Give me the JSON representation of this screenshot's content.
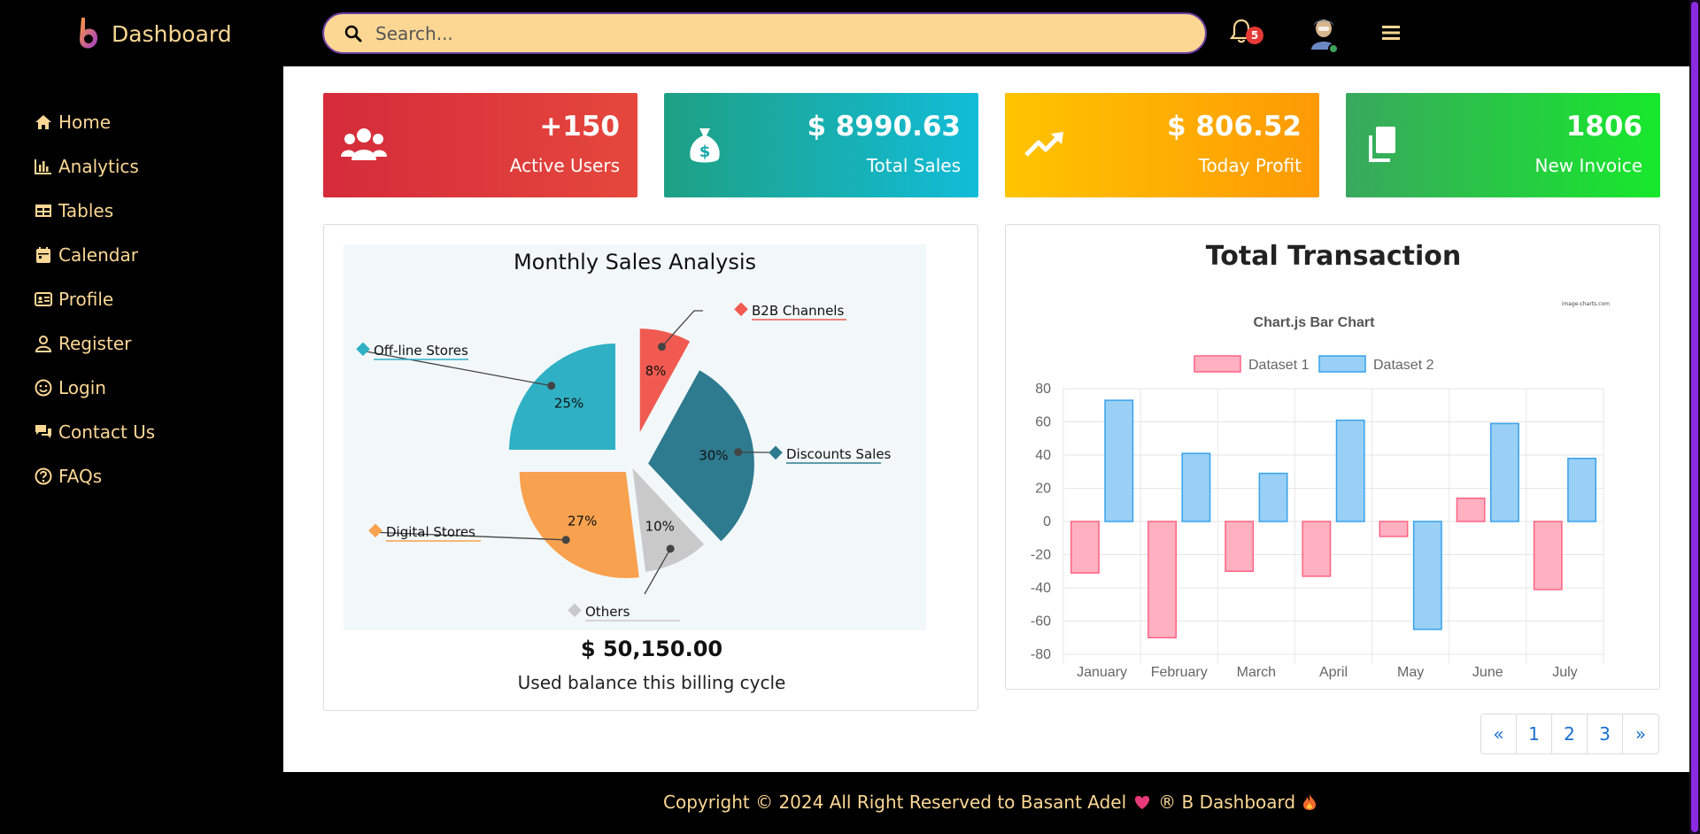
{
  "brand": {
    "title": "Dashboard"
  },
  "search": {
    "placeholder": "Search..."
  },
  "notifications": {
    "count": "5"
  },
  "sidebar": {
    "items": [
      {
        "label": "Home",
        "icon": "home-icon"
      },
      {
        "label": "Analytics",
        "icon": "bar-chart-icon"
      },
      {
        "label": "Tables",
        "icon": "table-icon"
      },
      {
        "label": "Calendar",
        "icon": "calendar-icon"
      },
      {
        "label": "Profile",
        "icon": "id-card-icon"
      },
      {
        "label": "Register",
        "icon": "user-icon"
      },
      {
        "label": "Login",
        "icon": "smile-icon"
      },
      {
        "label": "Contact Us",
        "icon": "chat-icon"
      },
      {
        "label": "FAQs",
        "icon": "question-icon"
      }
    ]
  },
  "cards": [
    {
      "value": "+150",
      "label": "Active Users",
      "icon": "users-icon"
    },
    {
      "value": "$ 8990.63",
      "label": "Total Sales",
      "icon": "money-bag-icon"
    },
    {
      "value": "$ 806.52",
      "label": "Today Profit",
      "icon": "trend-up-icon"
    },
    {
      "value": "1806",
      "label": "New Invoice",
      "icon": "copy-icon"
    }
  ],
  "sales_panel": {
    "balance": "$ 50,150.00",
    "subtitle": "Used balance this billing cycle"
  },
  "transaction_panel": {
    "title": "Total Transaction"
  },
  "pagination": {
    "prev": "«",
    "pages": [
      "1",
      "2",
      "3"
    ],
    "next": "»"
  },
  "footer": {
    "text": "Copyright © 2024 All Right Reserved to Basant Adel",
    "brand": "® B Dashboard"
  },
  "colors": {
    "accent": "#fcd794",
    "sidebar_bg": "#000000",
    "pie": {
      "b2b": "#f05a50",
      "discounts": "#2e7a8f",
      "others": "#c9c9c9",
      "digital": "#f8a14e",
      "offline": "#2fb0c4"
    },
    "dataset1": "#ffb1c1",
    "dataset2": "#9ad0f5"
  },
  "chart_data": [
    {
      "type": "pie",
      "title": "Monthly Sales Analysis",
      "categories": [
        "B2B Channels",
        "Discounts Sales",
        "Others",
        "Digital Stores",
        "Off-line Stores"
      ],
      "values": [
        8,
        30,
        10,
        27,
        25
      ],
      "value_labels": [
        "8%",
        "30%",
        "10%",
        "27%",
        "25%"
      ]
    },
    {
      "type": "bar",
      "title": "Chart.js Bar Chart",
      "watermark": "image-charts.com",
      "categories": [
        "January",
        "February",
        "March",
        "April",
        "May",
        "June",
        "July"
      ],
      "series": [
        {
          "name": "Dataset 1",
          "values": [
            -31,
            -70,
            -30,
            -33,
            -9,
            14,
            -41
          ]
        },
        {
          "name": "Dataset 2",
          "values": [
            73,
            41,
            29,
            61,
            -65,
            59,
            38
          ]
        }
      ],
      "ylim": [
        -80,
        80
      ],
      "yticks": [
        "80",
        "60",
        "40",
        "20",
        "0",
        "-20",
        "-40",
        "-60",
        "-80"
      ],
      "legend": "top",
      "grid": true
    }
  ]
}
